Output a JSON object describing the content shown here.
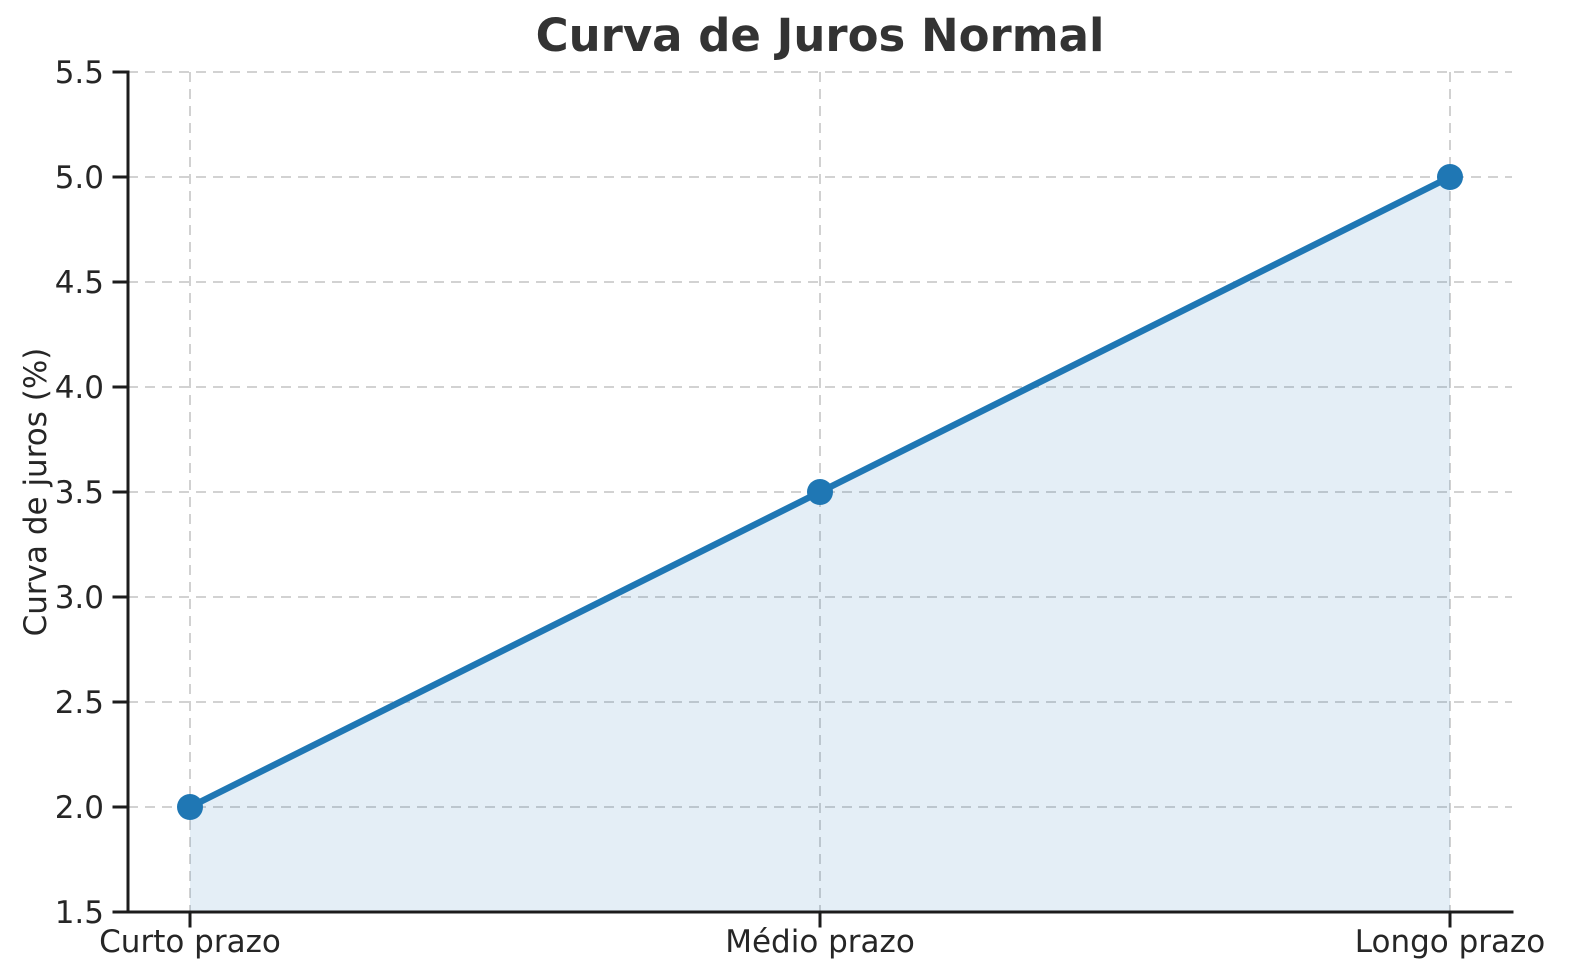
{
  "chart_data": {
    "type": "line",
    "title": "Curva de Juros Normal",
    "xlabel": "",
    "ylabel": "Curva de juros (%)",
    "categories": [
      "Curto prazo",
      "Médio prazo",
      "Longo prazo"
    ],
    "series": [
      {
        "name": "Curva de juros",
        "values": [
          2.0,
          3.5,
          5.0
        ]
      }
    ],
    "ylim": [
      1.5,
      5.5
    ],
    "yticks": [
      1.5,
      2.0,
      2.5,
      3.0,
      3.5,
      4.0,
      4.5,
      5.0,
      5.5
    ],
    "grid": {
      "visible": true,
      "style": "dashed",
      "color": "#cccccc"
    },
    "legend_position": "none",
    "area_fill": true,
    "marker": "circle",
    "colors": {
      "line": "#1f77b4",
      "marker": "#1f77b4",
      "fill": "#1f77b4",
      "fill_opacity": 0.12,
      "axis": "#1c1c1c",
      "tick_text": "#262626",
      "title_text": "#333333"
    }
  }
}
